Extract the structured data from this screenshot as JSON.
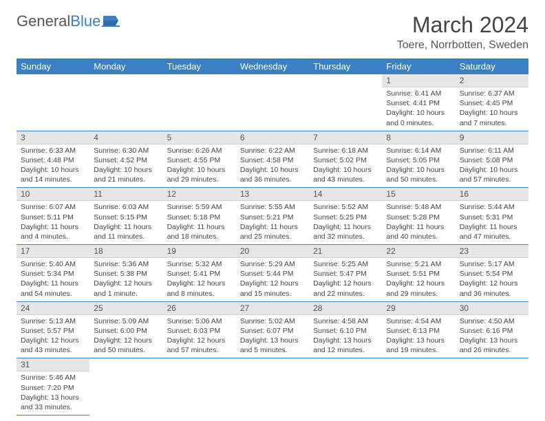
{
  "logo": {
    "text_a": "General",
    "text_b": "Blue"
  },
  "title": "March 2024",
  "location": "Toere, Norrbotten, Sweden",
  "colors": {
    "accent": "#3b7fc4",
    "day_header_bg": "#e6e6e6",
    "text": "#444"
  },
  "weekdays": [
    "Sunday",
    "Monday",
    "Tuesday",
    "Wednesday",
    "Thursday",
    "Friday",
    "Saturday"
  ],
  "weeks": [
    [
      null,
      null,
      null,
      null,
      null,
      {
        "n": "1",
        "sr": "6:41 AM",
        "ss": "4:41 PM",
        "dl": "10 hours and 0 minutes."
      },
      {
        "n": "2",
        "sr": "6:37 AM",
        "ss": "4:45 PM",
        "dl": "10 hours and 7 minutes."
      }
    ],
    [
      {
        "n": "3",
        "sr": "6:33 AM",
        "ss": "4:48 PM",
        "dl": "10 hours and 14 minutes."
      },
      {
        "n": "4",
        "sr": "6:30 AM",
        "ss": "4:52 PM",
        "dl": "10 hours and 21 minutes."
      },
      {
        "n": "5",
        "sr": "6:26 AM",
        "ss": "4:55 PM",
        "dl": "10 hours and 29 minutes."
      },
      {
        "n": "6",
        "sr": "6:22 AM",
        "ss": "4:58 PM",
        "dl": "10 hours and 36 minutes."
      },
      {
        "n": "7",
        "sr": "6:18 AM",
        "ss": "5:02 PM",
        "dl": "10 hours and 43 minutes."
      },
      {
        "n": "8",
        "sr": "6:14 AM",
        "ss": "5:05 PM",
        "dl": "10 hours and 50 minutes."
      },
      {
        "n": "9",
        "sr": "6:11 AM",
        "ss": "5:08 PM",
        "dl": "10 hours and 57 minutes."
      }
    ],
    [
      {
        "n": "10",
        "sr": "6:07 AM",
        "ss": "5:11 PM",
        "dl": "11 hours and 4 minutes."
      },
      {
        "n": "11",
        "sr": "6:03 AM",
        "ss": "5:15 PM",
        "dl": "11 hours and 11 minutes."
      },
      {
        "n": "12",
        "sr": "5:59 AM",
        "ss": "5:18 PM",
        "dl": "11 hours and 18 minutes."
      },
      {
        "n": "13",
        "sr": "5:55 AM",
        "ss": "5:21 PM",
        "dl": "11 hours and 25 minutes."
      },
      {
        "n": "14",
        "sr": "5:52 AM",
        "ss": "5:25 PM",
        "dl": "11 hours and 32 minutes."
      },
      {
        "n": "15",
        "sr": "5:48 AM",
        "ss": "5:28 PM",
        "dl": "11 hours and 40 minutes."
      },
      {
        "n": "16",
        "sr": "5:44 AM",
        "ss": "5:31 PM",
        "dl": "11 hours and 47 minutes."
      }
    ],
    [
      {
        "n": "17",
        "sr": "5:40 AM",
        "ss": "5:34 PM",
        "dl": "11 hours and 54 minutes."
      },
      {
        "n": "18",
        "sr": "5:36 AM",
        "ss": "5:38 PM",
        "dl": "12 hours and 1 minute."
      },
      {
        "n": "19",
        "sr": "5:32 AM",
        "ss": "5:41 PM",
        "dl": "12 hours and 8 minutes."
      },
      {
        "n": "20",
        "sr": "5:29 AM",
        "ss": "5:44 PM",
        "dl": "12 hours and 15 minutes."
      },
      {
        "n": "21",
        "sr": "5:25 AM",
        "ss": "5:47 PM",
        "dl": "12 hours and 22 minutes."
      },
      {
        "n": "22",
        "sr": "5:21 AM",
        "ss": "5:51 PM",
        "dl": "12 hours and 29 minutes."
      },
      {
        "n": "23",
        "sr": "5:17 AM",
        "ss": "5:54 PM",
        "dl": "12 hours and 36 minutes."
      }
    ],
    [
      {
        "n": "24",
        "sr": "5:13 AM",
        "ss": "5:57 PM",
        "dl": "12 hours and 43 minutes."
      },
      {
        "n": "25",
        "sr": "5:09 AM",
        "ss": "6:00 PM",
        "dl": "12 hours and 50 minutes."
      },
      {
        "n": "26",
        "sr": "5:06 AM",
        "ss": "6:03 PM",
        "dl": "12 hours and 57 minutes."
      },
      {
        "n": "27",
        "sr": "5:02 AM",
        "ss": "6:07 PM",
        "dl": "13 hours and 5 minutes."
      },
      {
        "n": "28",
        "sr": "4:58 AM",
        "ss": "6:10 PM",
        "dl": "13 hours and 12 minutes."
      },
      {
        "n": "29",
        "sr": "4:54 AM",
        "ss": "6:13 PM",
        "dl": "13 hours and 19 minutes."
      },
      {
        "n": "30",
        "sr": "4:50 AM",
        "ss": "6:16 PM",
        "dl": "13 hours and 26 minutes."
      }
    ],
    [
      {
        "n": "31",
        "sr": "5:46 AM",
        "ss": "7:20 PM",
        "dl": "13 hours and 33 minutes."
      },
      null,
      null,
      null,
      null,
      null,
      null
    ]
  ],
  "labels": {
    "sunrise": "Sunrise:",
    "sunset": "Sunset:",
    "daylight": "Daylight:"
  }
}
